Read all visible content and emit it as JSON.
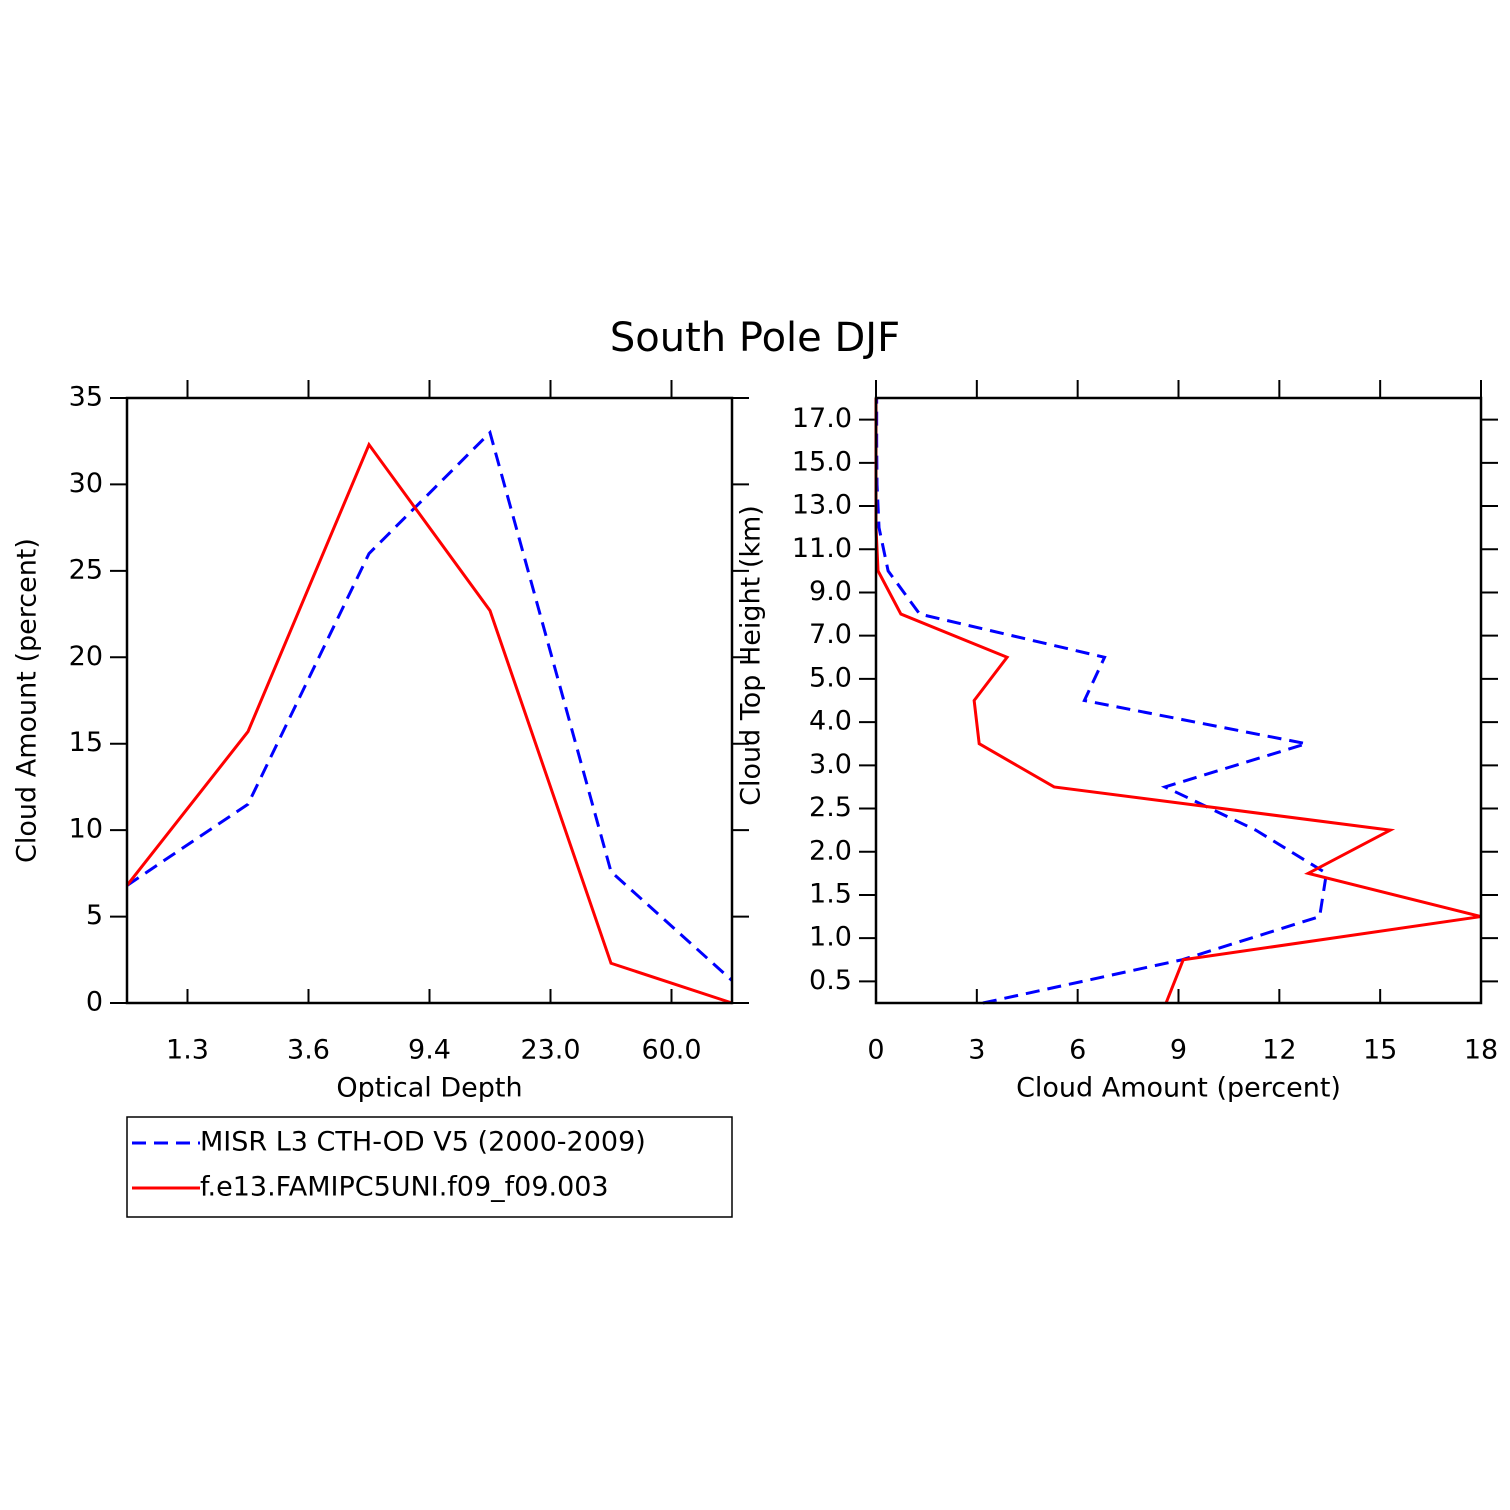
{
  "title": "South Pole DJF",
  "chart_data": [
    {
      "type": "line",
      "xlabel": "Optical Depth",
      "ylabel": "Cloud Amount (percent)",
      "x": [
        0,
        1,
        2,
        3,
        4,
        5
      ],
      "xlim": [
        0,
        5
      ],
      "xticks": [
        {
          "value": 0.5,
          "label": "1.3"
        },
        {
          "value": 1.5,
          "label": "3.6"
        },
        {
          "value": 2.5,
          "label": "9.4"
        },
        {
          "value": 3.5,
          "label": "23.0"
        },
        {
          "value": 4.5,
          "label": "60.0"
        }
      ],
      "ylim": [
        0,
        35
      ],
      "yticks": [
        0,
        5,
        10,
        15,
        20,
        25,
        30,
        35
      ],
      "legend": "bottom",
      "series": [
        {
          "name": "MISR L3 CTH-OD V5 (2000-2009)",
          "color": "#0000ff",
          "dashed": true,
          "values": [
            6.8,
            11.5,
            26.0,
            33.0,
            7.6,
            1.3
          ]
        },
        {
          "name": "f.e13.FAMIPC5UNI.f09_f09.003",
          "color": "#ff0000",
          "dashed": false,
          "values": [
            6.8,
            15.7,
            32.3,
            22.7,
            2.3,
            0
          ]
        }
      ]
    },
    {
      "type": "line",
      "orientation": "horizontal",
      "xlabel": "Cloud Amount (percent)",
      "ylabel": "Cloud Top Height (km)",
      "y": [
        0,
        1,
        2,
        3,
        4,
        5,
        6,
        7,
        8,
        9,
        10,
        11,
        12,
        13,
        14
      ],
      "ylim": [
        0,
        14
      ],
      "yticks": [
        {
          "value": 0.5,
          "label": "0.5"
        },
        {
          "value": 1.5,
          "label": "1.0"
        },
        {
          "value": 2.5,
          "label": "1.5"
        },
        {
          "value": 3.5,
          "label": "2.0"
        },
        {
          "value": 4.5,
          "label": "2.5"
        },
        {
          "value": 5.5,
          "label": "3.0"
        },
        {
          "value": 6.5,
          "label": "4.0"
        },
        {
          "value": 7.5,
          "label": "5.0"
        },
        {
          "value": 8.5,
          "label": "7.0"
        },
        {
          "value": 9.5,
          "label": "9.0"
        },
        {
          "value": 10.5,
          "label": "11.0"
        },
        {
          "value": 11.5,
          "label": "13.0"
        },
        {
          "value": 12.5,
          "label": "15.0"
        },
        {
          "value": 13.5,
          "label": "17.0"
        }
      ],
      "xlim": [
        0,
        18
      ],
      "xticks": [
        0,
        3,
        6,
        9,
        12,
        15,
        18
      ],
      "series": [
        {
          "color": "#0000ff",
          "dashed": true,
          "values": [
            3.18,
            9.1,
            13.2,
            13.4,
            11.3,
            8.6,
            12.8,
            6.2,
            6.8,
            1.3,
            0.36,
            0.09,
            0.03,
            0.02,
            0.02
          ]
        },
        {
          "color": "#ff0000",
          "dashed": false,
          "values": [
            8.63,
            9.14,
            18.0,
            12.86,
            15.3,
            5.3,
            3.07,
            2.92,
            3.9,
            0.74,
            0.06,
            0,
            0,
            0,
            0
          ]
        }
      ]
    }
  ]
}
